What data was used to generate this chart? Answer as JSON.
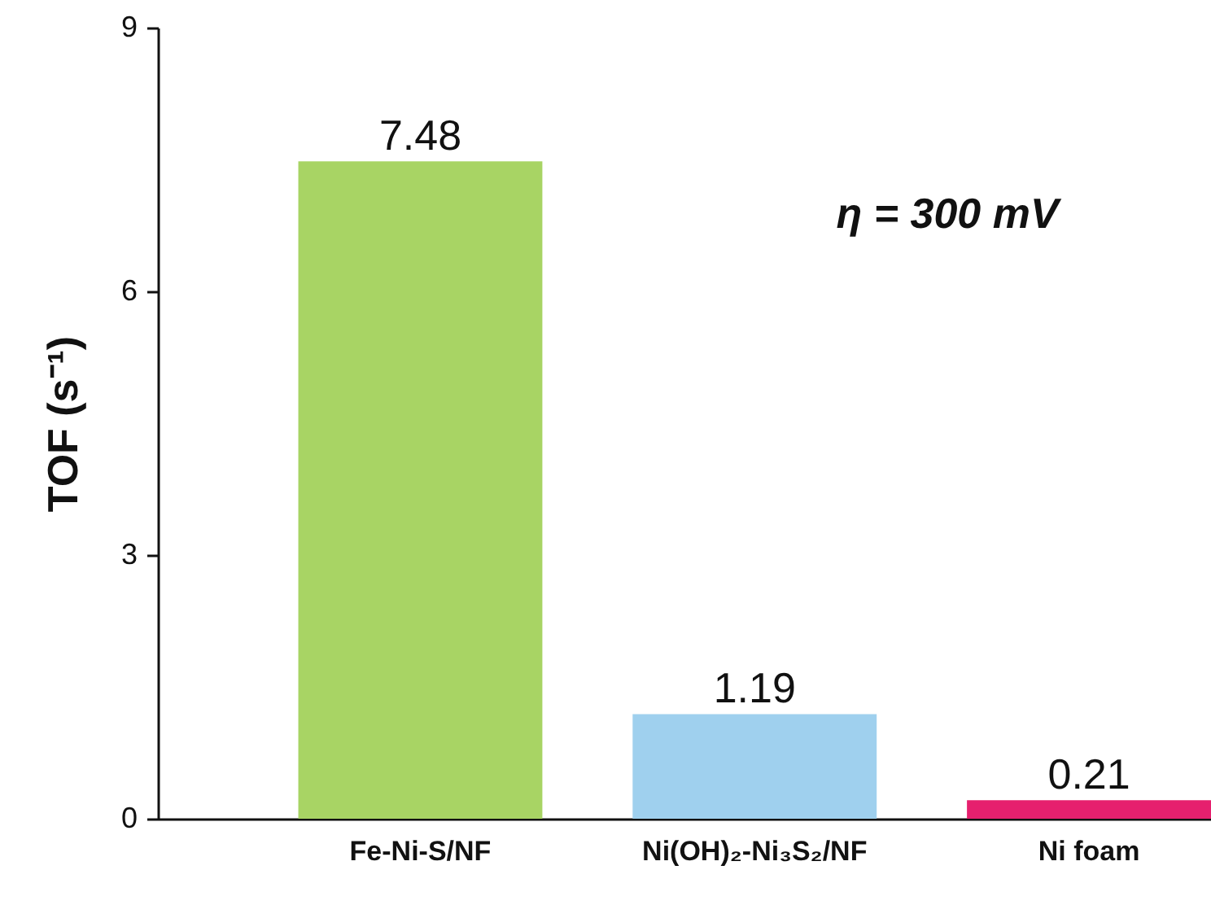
{
  "chart_data": {
    "type": "bar",
    "ylabel": "TOF (s⁻¹)",
    "categories": [
      "Fe-Ni-S/NF",
      "Ni(OH)₂-Ni₃S₂/NF",
      "Ni foam"
    ],
    "values": [
      7.48,
      1.19,
      0.21
    ],
    "colors": [
      "#a8d464",
      "#9fd0ee",
      "#e6206e"
    ],
    "ylim": [
      0,
      9
    ],
    "yticks": [
      0,
      3,
      6,
      9
    ],
    "data_labels": true,
    "grid": false,
    "annotations": [
      "η = 300 mV"
    ]
  }
}
